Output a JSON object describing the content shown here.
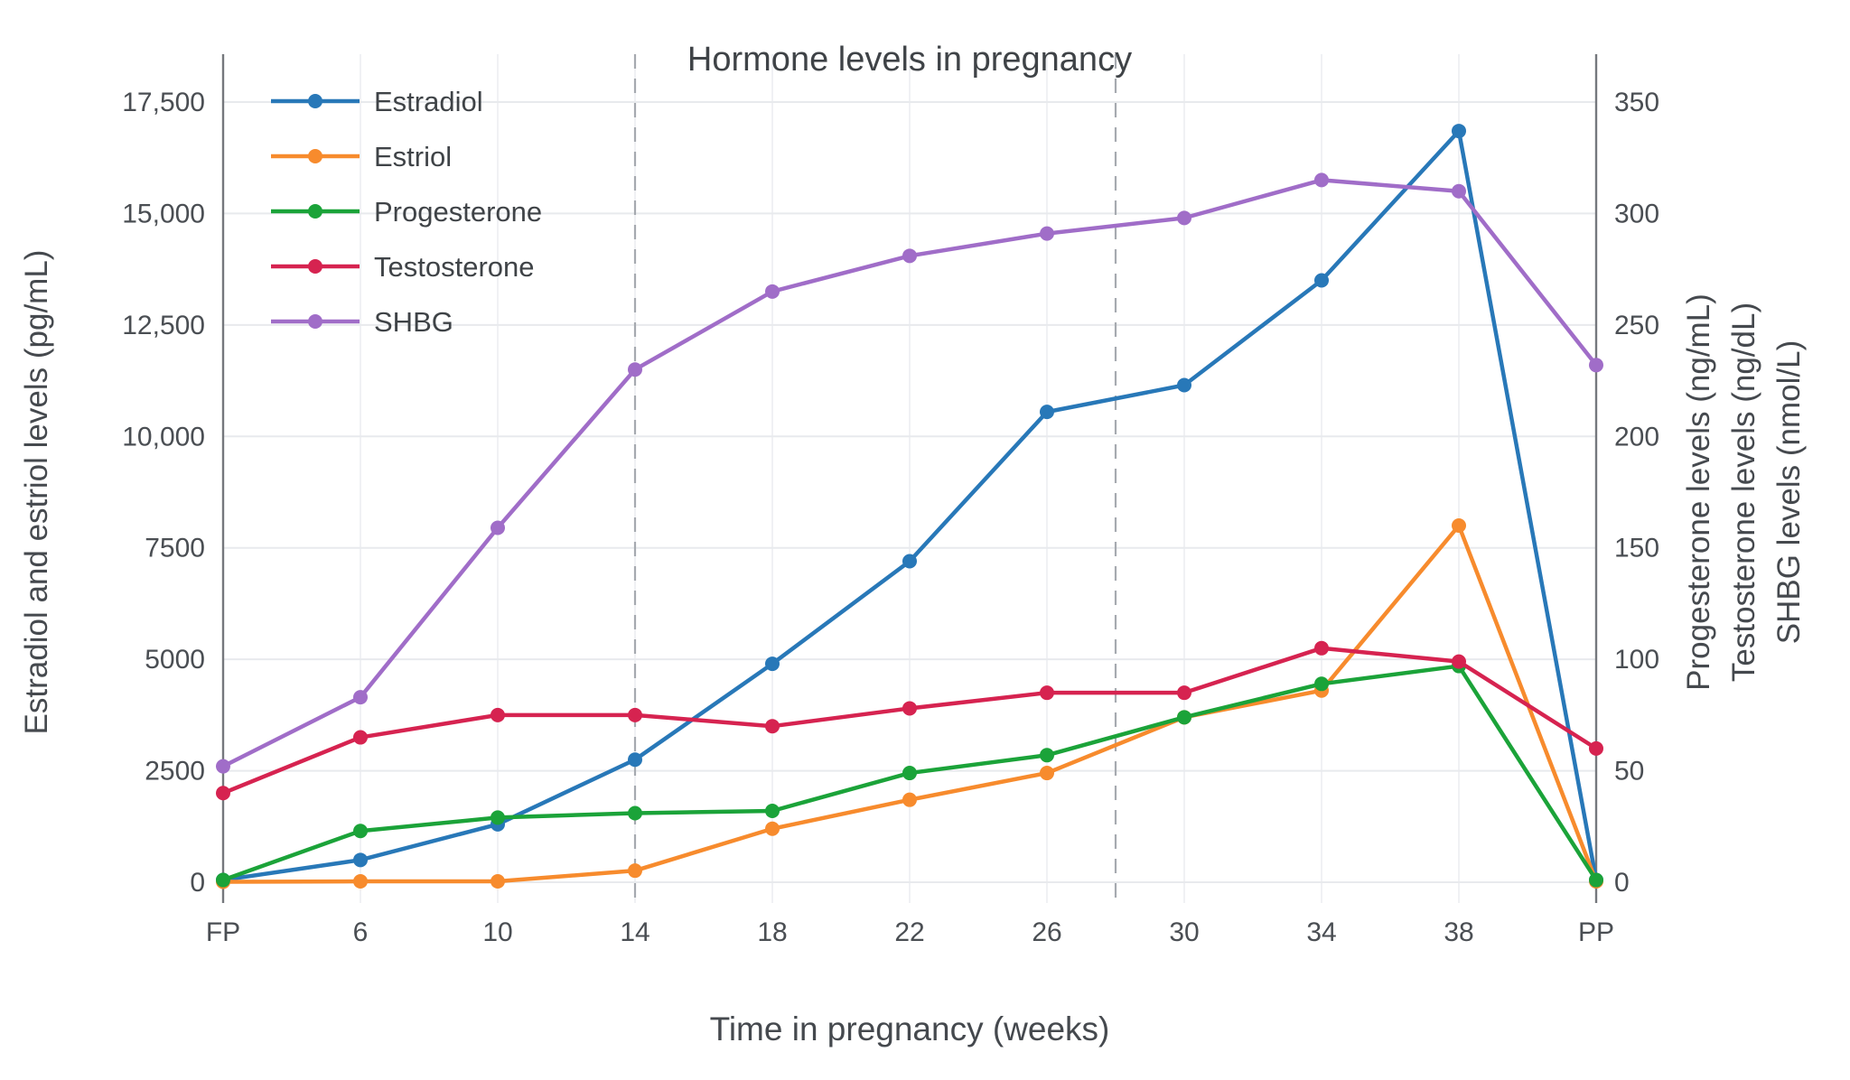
{
  "chart_data": {
    "type": "line",
    "title": "Hormone levels in pregnancy",
    "xlabel": "Time in pregnancy (weeks)",
    "ylabel_left": "Estradiol and estriol levels (pg/mL)",
    "ylabel_right_lines": [
      "Progesterone levels (ng/mL)",
      "Testosterone levels (ng/dL)",
      "SHBG levels (nmol/L)"
    ],
    "categories": [
      "FP",
      "6",
      "10",
      "14",
      "18",
      "22",
      "26",
      "30",
      "34",
      "38",
      "PP"
    ],
    "left_axis": {
      "tick_labels": [
        "0",
        "2500",
        "5000",
        "7500",
        "10,000",
        "12,500",
        "15,000",
        "17,500"
      ],
      "tick_values": [
        0,
        2500,
        5000,
        7500,
        10000,
        12500,
        15000,
        17500
      ],
      "max": 17500
    },
    "right_axis": {
      "tick_labels": [
        "0",
        "50",
        "100",
        "150",
        "200",
        "250",
        "300",
        "350"
      ],
      "tick_values": [
        0,
        50,
        100,
        150,
        200,
        250,
        300,
        350
      ],
      "max": 350
    },
    "series": [
      {
        "name": "Estradiol",
        "axis": "left",
        "color": "#2878b8",
        "values": [
          50,
          500,
          1300,
          2750,
          4900,
          7200,
          10550,
          11150,
          13500,
          16850,
          50
        ]
      },
      {
        "name": "Estriol",
        "axis": "left",
        "color": "#f78b2d",
        "values": [
          10,
          20,
          20,
          260,
          1200,
          1850,
          2450,
          3700,
          4300,
          8000,
          20
        ]
      },
      {
        "name": "Progesterone",
        "axis": "right",
        "color": "#1ba339",
        "values": [
          1,
          23,
          29,
          31,
          32,
          49,
          57,
          74,
          89,
          97,
          1
        ]
      },
      {
        "name": "Testosterone",
        "axis": "right",
        "color": "#d62350",
        "values": [
          40,
          65,
          75,
          75,
          70,
          78,
          85,
          85,
          105,
          99,
          60
        ]
      },
      {
        "name": "SHBG",
        "axis": "right",
        "color": "#a06dc8",
        "values": [
          52,
          83,
          159,
          230,
          265,
          281,
          291,
          298,
          315,
          310,
          232
        ]
      }
    ],
    "reference_lines": {
      "dashed_at_weeks": [
        14,
        28
      ],
      "solid_at_categories": [
        "FP",
        "PP"
      ]
    },
    "legend_position": "top-left-inside",
    "grid": true,
    "colors": {
      "grid": "#e8eaed",
      "grid_vertical": "#f0f1f4",
      "dashed_line": "#a6aab0",
      "solid_line": "#75787d",
      "text": "#45494e"
    }
  }
}
